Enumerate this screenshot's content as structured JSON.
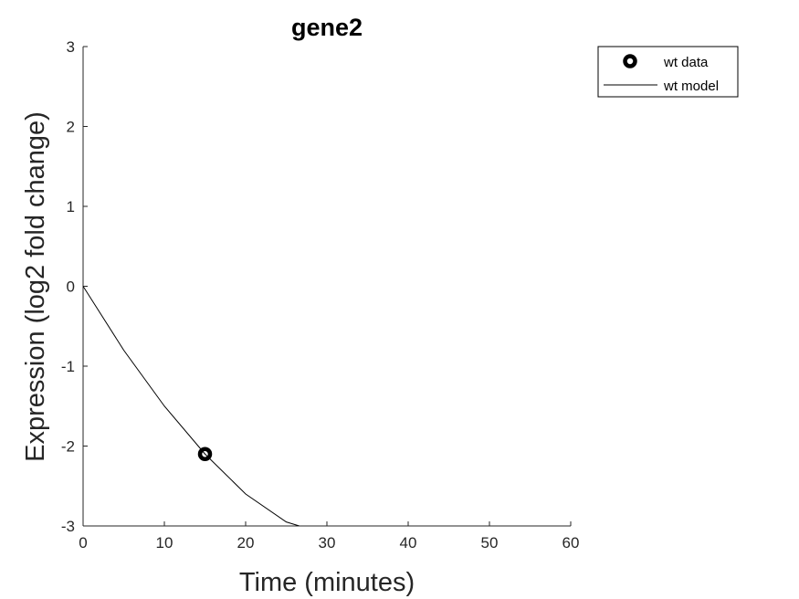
{
  "chart_data": {
    "type": "line",
    "title": "gene2",
    "xlabel": "Time (minutes)",
    "ylabel": "Expression (log2 fold change)",
    "xlim": [
      0,
      60
    ],
    "ylim": [
      -3,
      3
    ],
    "xticks": [
      0,
      10,
      20,
      30,
      40,
      50,
      60
    ],
    "yticks": [
      -3,
      -2,
      -1,
      0,
      1,
      2,
      3
    ],
    "grid": false,
    "legend_position": "outside-top-right",
    "series": [
      {
        "name": "wt data",
        "kind": "scatter",
        "marker": "circle",
        "color": "#000000",
        "x": [
          15
        ],
        "y": [
          -2.1
        ]
      },
      {
        "name": "wt model",
        "kind": "line",
        "color": "#000000",
        "x": [
          0,
          5,
          10,
          15,
          20,
          25,
          26.6
        ],
        "y": [
          0,
          -0.8,
          -1.5,
          -2.1,
          -2.6,
          -2.95,
          -3.0
        ]
      }
    ]
  }
}
